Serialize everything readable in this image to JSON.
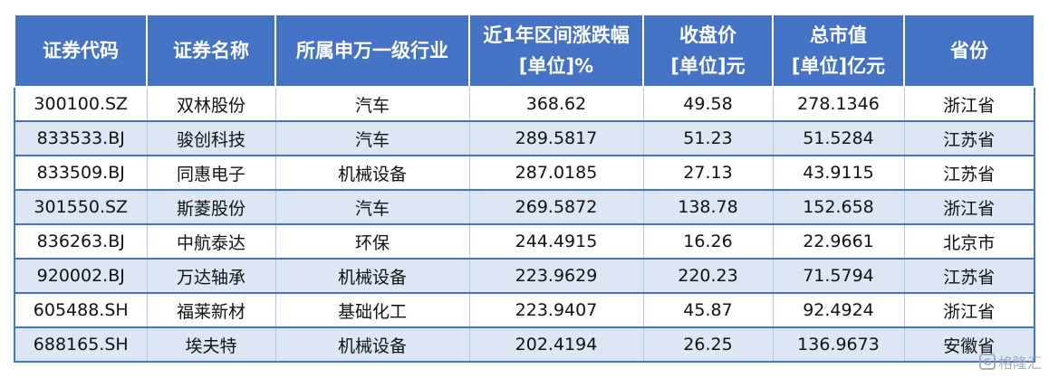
{
  "table": {
    "headers": [
      [
        "证券代码"
      ],
      [
        "证券名称"
      ],
      [
        "所属申万一级行业"
      ],
      [
        "近1年区间涨跌幅",
        "[单位]%"
      ],
      [
        "收盘价",
        "[单位]元"
      ],
      [
        "总市值",
        "[单位]亿元"
      ],
      [
        "省份"
      ]
    ],
    "rows": [
      [
        "300100.SZ",
        "双林股份",
        "汽车",
        "368.62",
        "49.58",
        "278.1346",
        "浙江省"
      ],
      [
        "833533.BJ",
        "骏创科技",
        "汽车",
        "289.5817",
        "51.23",
        "51.5284",
        "江苏省"
      ],
      [
        "833509.BJ",
        "同惠电子",
        "机械设备",
        "287.0185",
        "27.13",
        "43.9115",
        "江苏省"
      ],
      [
        "301550.SZ",
        "斯菱股份",
        "汽车",
        "269.5872",
        "138.78",
        "152.658",
        "浙江省"
      ],
      [
        "836263.BJ",
        "中航泰达",
        "环保",
        "244.4915",
        "16.26",
        "22.9661",
        "北京市"
      ],
      [
        "920002.BJ",
        "万达轴承",
        "机械设备",
        "223.9629",
        "220.23",
        "71.5794",
        "江苏省"
      ],
      [
        "605488.SH",
        "福莱新材",
        "基础化工",
        "223.9407",
        "45.87",
        "92.4924",
        "浙江省"
      ],
      [
        "688165.SH",
        "埃夫特",
        "机械设备",
        "202.4194",
        "26.25",
        "136.9673",
        "安徽省"
      ]
    ]
  },
  "watermark": {
    "text": "格隆汇",
    "icon": "gelonghui-logo-icon"
  }
}
